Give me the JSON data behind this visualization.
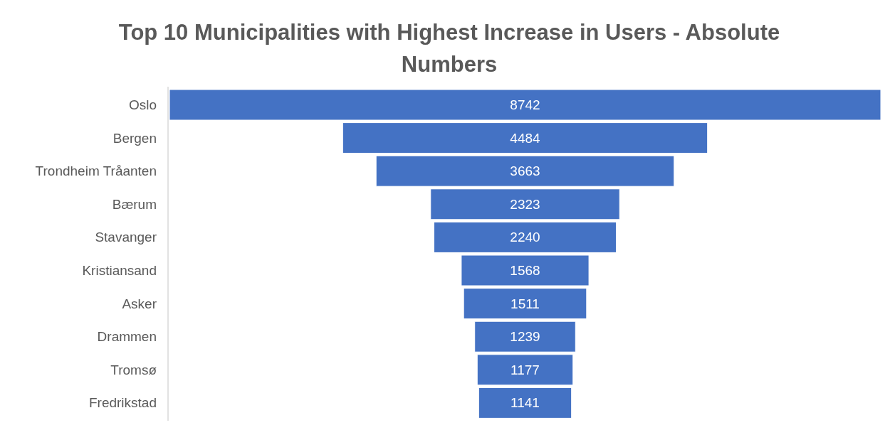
{
  "chart_data": {
    "type": "other",
    "title": "Top 10 Municipalities with Highest Increase in Users - Absolute Numbers",
    "categories": [
      "Oslo",
      "Bergen",
      "Trondheim Tråanten",
      "Bærum",
      "Stavanger",
      "Kristiansand",
      "Asker",
      "Drammen",
      "Tromsø",
      "Fredrikstad"
    ],
    "values": [
      8742,
      4484,
      3663,
      2323,
      2240,
      1568,
      1511,
      1239,
      1177,
      1141
    ],
    "color": "#4472c4",
    "data_labels": true
  }
}
